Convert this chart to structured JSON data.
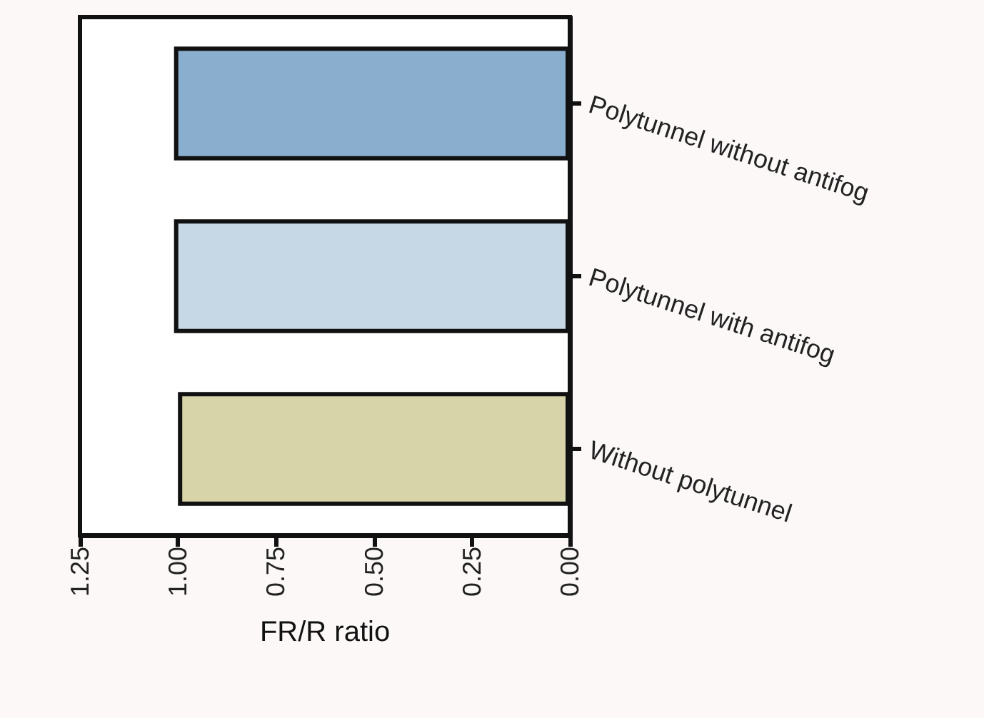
{
  "chart_data": {
    "type": "bar",
    "orientation": "horizontal",
    "xlabel": "FR/R ratio",
    "categories": [
      "Polytunnel without antifog",
      "Polytunnel with antifog",
      "Without polytunnel"
    ],
    "values": [
      1.01,
      1.01,
      1.0
    ],
    "colors": [
      "#8aaecd",
      "#c6d7e6",
      "#d8d4aa"
    ],
    "xlim": [
      1.25,
      0
    ],
    "xticks": [
      {
        "value": 1.25,
        "label": "1.25"
      },
      {
        "value": 1,
        "label": "1.00"
      },
      {
        "value": 0.75,
        "label": "0.75"
      },
      {
        "value": 0.5,
        "label": "0.50"
      },
      {
        "value": 0.25,
        "label": "0.25"
      },
      {
        "value": 0,
        "label": "0.00"
      }
    ],
    "grid": false
  }
}
